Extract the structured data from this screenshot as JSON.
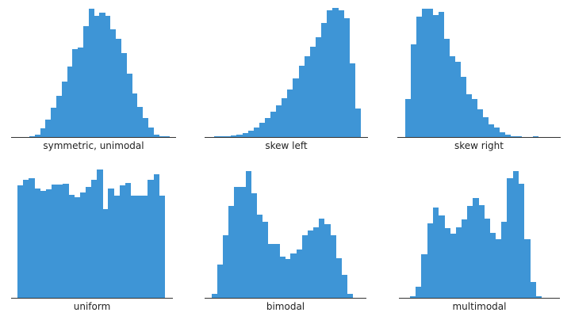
{
  "chart_data": [
    {
      "type": "bar",
      "title": "symmetric, unimodal",
      "xlabel": "symmetric, unimodal",
      "ylabel": "",
      "grid": false,
      "legend": null,
      "color": "#3e95d6",
      "values": [
        1,
        3,
        11,
        22,
        37,
        52,
        70,
        89,
        111,
        113,
        140,
        162,
        153,
        157,
        153,
        136,
        124,
        106,
        80,
        55,
        38,
        24,
        12,
        3,
        1,
        1
      ]
    },
    {
      "type": "bar",
      "title": "skew left",
      "xlabel": "skew left",
      "ylabel": "",
      "grid": false,
      "legend": null,
      "color": "#3e95d6",
      "values": [
        1,
        1,
        1,
        2,
        3,
        5,
        8,
        12,
        18,
        24,
        32,
        40,
        49,
        60,
        74,
        90,
        102,
        114,
        126,
        144,
        160,
        163,
        160,
        150,
        93,
        36
      ]
    },
    {
      "type": "bar",
      "title": "skew right",
      "xlabel": "skew right",
      "ylabel": "",
      "grid": false,
      "legend": null,
      "color": "#3e95d6",
      "values": [
        48,
        117,
        152,
        162,
        162,
        154,
        158,
        124,
        102,
        95,
        76,
        54,
        48,
        35,
        25,
        16,
        12,
        6,
        3,
        1,
        1,
        0,
        0,
        1,
        0
      ]
    },
    {
      "type": "bar",
      "title": "uniform",
      "xlabel": "uniform",
      "ylabel": "",
      "grid": false,
      "legend": null,
      "color": "#3e95d6",
      "values": [
        142,
        149,
        151,
        138,
        135,
        137,
        143,
        143,
        144,
        130,
        127,
        133,
        140,
        149,
        162,
        112,
        138,
        129,
        142,
        145,
        129,
        129,
        129,
        149,
        156,
        129
      ]
    },
    {
      "type": "bar",
      "title": "bimodal",
      "xlabel": "bimodal",
      "ylabel": "",
      "grid": false,
      "legend": null,
      "color": "#3e95d6",
      "values": [
        5,
        42,
        79,
        116,
        140,
        140,
        160,
        132,
        105,
        96,
        68,
        68,
        52,
        49,
        56,
        61,
        79,
        85,
        89,
        100,
        93,
        79,
        50,
        29,
        5
      ]
    },
    {
      "type": "bar",
      "title": "multimodal",
      "xlabel": "multimodal",
      "ylabel": "",
      "grid": false,
      "legend": null,
      "color": "#3e95d6",
      "values": [
        2,
        14,
        55,
        94,
        114,
        104,
        88,
        81,
        89,
        99,
        116,
        126,
        117,
        100,
        82,
        74,
        96,
        151,
        160,
        144,
        74,
        20,
        2
      ]
    }
  ],
  "panels": [
    {
      "label": "symmetric, unimodal"
    },
    {
      "label": "skew left"
    },
    {
      "label": "skew right"
    },
    {
      "label": "uniform"
    },
    {
      "label": "bimodal"
    },
    {
      "label": "multimodal"
    }
  ]
}
